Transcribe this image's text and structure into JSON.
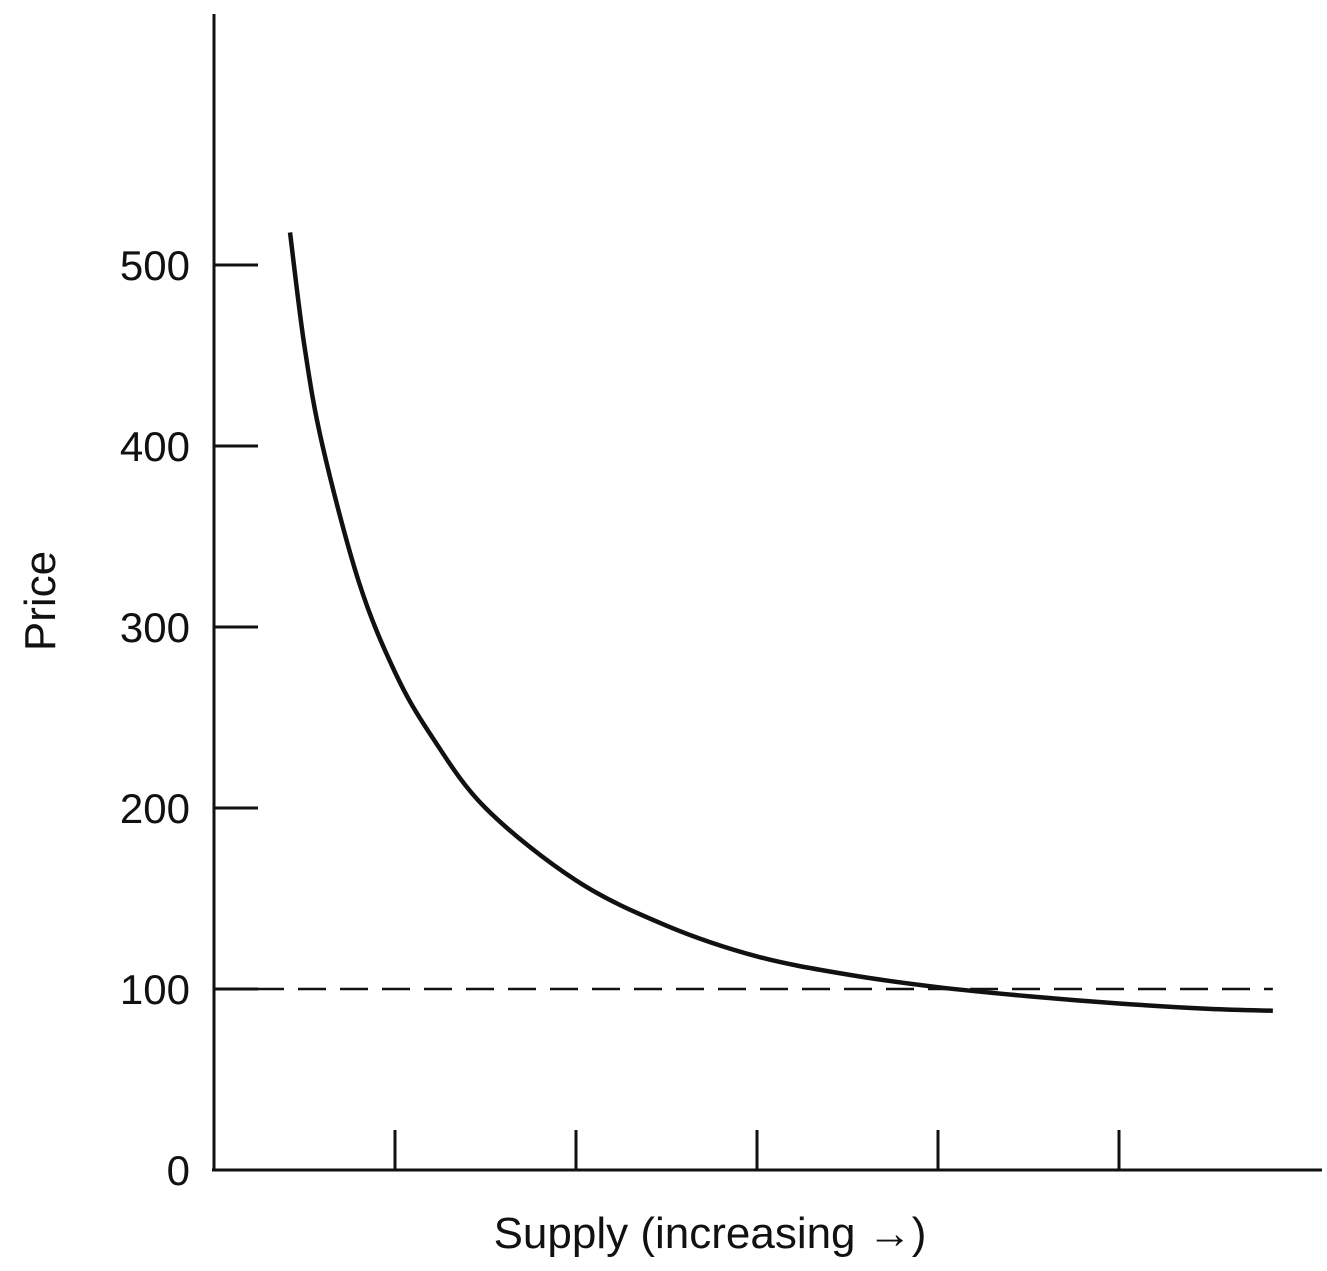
{
  "chart_data": {
    "type": "line",
    "xlabel": "Supply (increasing →)",
    "ylabel": "Price",
    "ylim": [
      0,
      500
    ],
    "yticks": [
      "0",
      "100",
      "200",
      "300",
      "400",
      "500"
    ],
    "xlim": [
      0,
      6
    ],
    "xticks": [
      1,
      2,
      3,
      4,
      5
    ],
    "grid": false,
    "series": [
      {
        "x": [
          0.42,
          0.5,
          0.6,
          0.8,
          1.0,
          1.2,
          1.5,
          2.0,
          2.5,
          3.0,
          3.5,
          4.0,
          4.5,
          5.0,
          5.5,
          5.85
        ],
        "y": [
          518,
          455,
          400,
          325,
          275,
          240,
          200,
          160,
          135,
          118,
          108,
          101,
          96,
          92,
          89,
          88
        ],
        "color": "#111111",
        "style": "solid"
      },
      {
        "x": [
          0.0,
          5.85
        ],
        "y": [
          100,
          100
        ],
        "color": "#111111",
        "style": "dashed"
      }
    ]
  }
}
